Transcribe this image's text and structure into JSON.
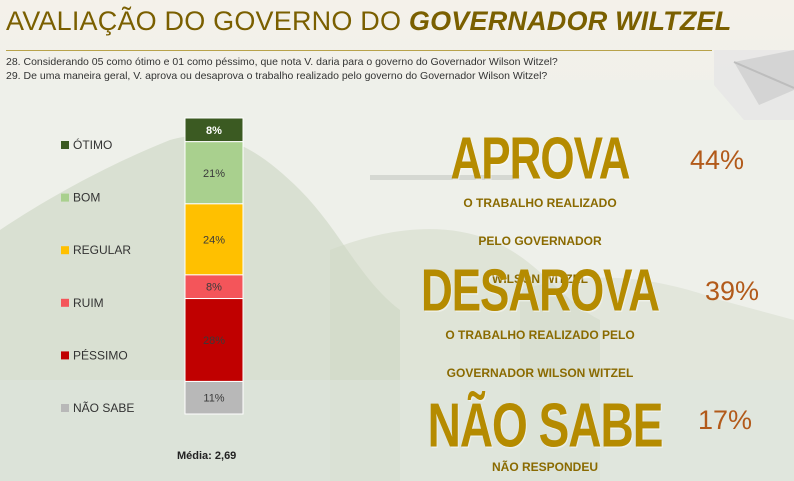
{
  "header": {
    "title_plain": "AVALIAÇÃO DO GOVERNO DO ",
    "title_strong": "GOVERNADOR WILTZEL"
  },
  "questions": {
    "q28": "28. Considerando 05 como ótimo e 01 como péssimo, que nota V. daria para o governo do Governador Wilson Witzel?",
    "q29": "29. De uma maneira geral, V. aprova ou desaprova o trabalho realizado pelo governo do Governador Wilson Witzel?"
  },
  "chart_data": {
    "type": "bar",
    "stacked": true,
    "orientation": "vertical",
    "categories": [
      "ÓTIMO",
      "BOM",
      "REGULAR",
      "RUIM",
      "PÉSSIMO",
      "NÃO SABE"
    ],
    "values": [
      8,
      21,
      24,
      8,
      28,
      11
    ],
    "value_labels": [
      "8%",
      "21%",
      "24%",
      "8%",
      "28%",
      "11%"
    ],
    "colors": [
      "#3b5a22",
      "#a9d08e",
      "#ffc000",
      "#f4555a",
      "#c00000",
      "#b8b8b8"
    ],
    "label_colors": [
      "#ffffff",
      "#3a3a3a",
      "#3a3a3a",
      "#3a3a3a",
      "#3a3a3a",
      "#3a3a3a"
    ],
    "unit": "%",
    "legend_position": "left",
    "footnote": "Média: 2,69"
  },
  "approval": {
    "approve": {
      "label": "APROVA",
      "sub": [
        "O TRABALHO REALIZADO",
        "PELO GOVERNADOR",
        "WILSON WITZEL"
      ],
      "percent": "44%"
    },
    "disapprove": {
      "label": "DESAROVA",
      "sub": [
        "O TRABALHO REALIZADO PELO",
        "GOVERNADOR WILSON WITZEL"
      ],
      "percent": "39%"
    },
    "unknown": {
      "label": "NÃO SABE",
      "sub": [
        "NÃO RESPONDEU"
      ],
      "percent": "17%"
    }
  },
  "colors": {
    "title": "#7a5f00",
    "accent_gold": "#b58b00",
    "percent": "#b25a1a"
  }
}
